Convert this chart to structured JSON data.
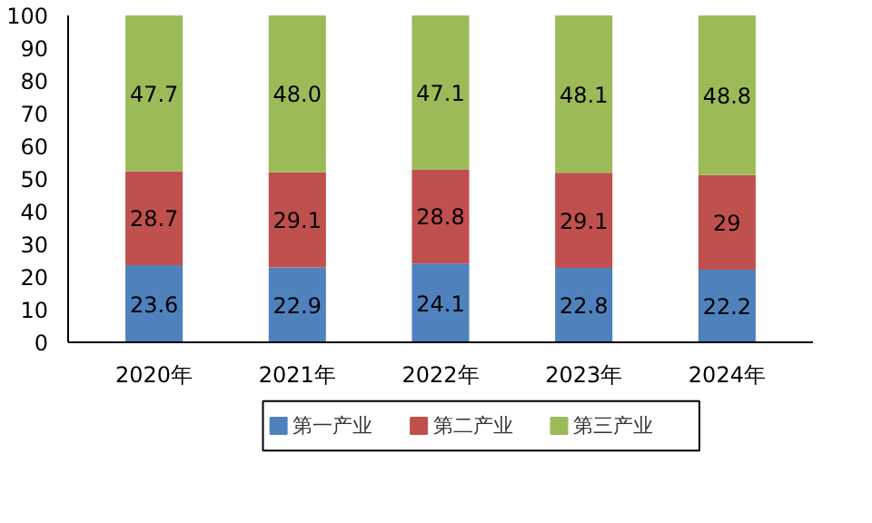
{
  "chart_data": {
    "type": "bar",
    "stacked": true,
    "categories": [
      "2020年",
      "2021年",
      "2022年",
      "2023年",
      "2024年"
    ],
    "series": [
      {
        "name": "第一产业",
        "color": "#4f81bd",
        "values": [
          23.6,
          22.9,
          24.1,
          22.8,
          22.2
        ],
        "value_labels": [
          "23.6",
          "22.9",
          "24.1",
          "22.8",
          "22.2"
        ]
      },
      {
        "name": "第二产业",
        "color": "#c0504d",
        "values": [
          28.7,
          29.1,
          28.8,
          29.1,
          29
        ],
        "value_labels": [
          "28.7",
          "29.1",
          "28.8",
          "29.1",
          "29"
        ]
      },
      {
        "name": "第三产业",
        "color": "#9bbb59",
        "values": [
          47.7,
          48.0,
          47.1,
          48.1,
          48.8
        ],
        "value_labels": [
          "47.7",
          "48.0",
          "47.1",
          "48.1",
          "48.8"
        ]
      }
    ],
    "ylim": [
      0,
      100
    ],
    "yticks": [
      0,
      10,
      20,
      30,
      40,
      50,
      60,
      70,
      80,
      90,
      100
    ],
    "grid": false,
    "legend": "bottom"
  }
}
